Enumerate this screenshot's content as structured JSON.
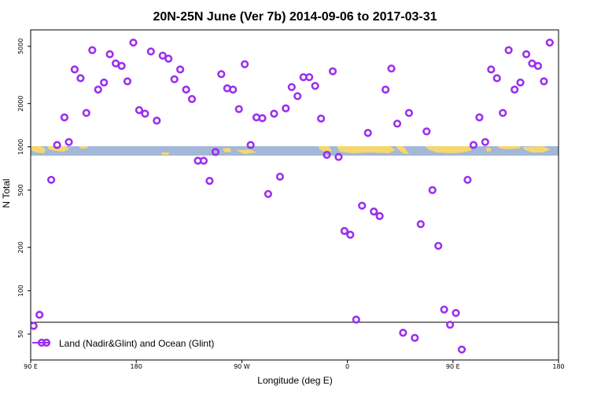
{
  "chart_data": {
    "type": "scatter",
    "title": "20N-25N June (Ver 7b)   2014-09-06 to 2017-03-31",
    "xlabel": "Longitude (deg E)",
    "ylabel": "N Total",
    "yscale": "log",
    "ylim": [
      33,
      6500
    ],
    "xlim": [
      0,
      360
    ],
    "x_ticks": [
      {
        "value": 0,
        "label": "90 E"
      },
      {
        "value": 72,
        "label": "180"
      },
      {
        "value": 144,
        "label": "90 W"
      },
      {
        "value": 216,
        "label": "0"
      },
      {
        "value": 288,
        "label": "90 E"
      },
      {
        "value": 360,
        "label": "180"
      }
    ],
    "y_ticks": [
      {
        "value": 50,
        "label": "50"
      },
      {
        "value": 100,
        "label": "100"
      },
      {
        "value": 200,
        "label": "200"
      },
      {
        "value": 500,
        "label": "500"
      },
      {
        "value": 1000,
        "label": "1000"
      },
      {
        "value": 2000,
        "label": "2000"
      },
      {
        "value": 5000,
        "label": "5000"
      }
    ],
    "legend": {
      "label": "Land (Nadir&Glint) and Ocean (Glint)",
      "position": "bottom-left"
    },
    "colors": {
      "points": "#9b30ef",
      "land": "#f5d76e",
      "ocean": "#a3b8d8"
    },
    "series": [
      {
        "name": "Land (Nadir&Glint) and Ocean (Glint)",
        "points": [
          [
            2,
            57
          ],
          [
            6,
            68
          ],
          [
            14,
            590
          ],
          [
            18,
            1030
          ],
          [
            23,
            1600
          ],
          [
            26,
            1080
          ],
          [
            30,
            3450
          ],
          [
            34,
            3000
          ],
          [
            38,
            1720
          ],
          [
            42,
            4700
          ],
          [
            46,
            2500
          ],
          [
            50,
            2800
          ],
          [
            54,
            4400
          ],
          [
            58,
            3800
          ],
          [
            62,
            3650
          ],
          [
            66,
            2850
          ],
          [
            70,
            5300
          ],
          [
            74,
            1800
          ],
          [
            78,
            1700
          ],
          [
            82,
            4600
          ],
          [
            86,
            1520
          ],
          [
            90,
            4300
          ],
          [
            94,
            4100
          ],
          [
            98,
            2950
          ],
          [
            102,
            3450
          ],
          [
            106,
            2500
          ],
          [
            110,
            2150
          ],
          [
            114,
            800
          ],
          [
            118,
            800
          ],
          [
            122,
            580
          ],
          [
            126,
            920
          ],
          [
            130,
            3200
          ],
          [
            134,
            2550
          ],
          [
            138,
            2500
          ],
          [
            142,
            1830
          ],
          [
            146,
            3750
          ],
          [
            150,
            1030
          ],
          [
            154,
            1600
          ],
          [
            158,
            1580
          ],
          [
            162,
            470
          ],
          [
            166,
            1700
          ],
          [
            170,
            620
          ],
          [
            174,
            1850
          ],
          [
            178,
            2600
          ],
          [
            182,
            2250
          ],
          [
            186,
            3050
          ],
          [
            190,
            3050
          ],
          [
            194,
            2650
          ],
          [
            198,
            1570
          ],
          [
            202,
            880
          ],
          [
            206,
            3350
          ],
          [
            210,
            850
          ],
          [
            214,
            260
          ],
          [
            218,
            245
          ],
          [
            222,
            63
          ],
          [
            226,
            390
          ],
          [
            230,
            1250
          ],
          [
            234,
            355
          ],
          [
            238,
            330
          ],
          [
            242,
            2500
          ],
          [
            246,
            3500
          ],
          [
            250,
            1450
          ],
          [
            254,
            51
          ],
          [
            258,
            1720
          ],
          [
            262,
            47
          ],
          [
            266,
            290
          ],
          [
            270,
            1280
          ],
          [
            274,
            500
          ],
          [
            278,
            205
          ],
          [
            282,
            74
          ],
          [
            286,
            58
          ],
          [
            290,
            70
          ],
          [
            294,
            39
          ],
          [
            298,
            590
          ],
          [
            302,
            1030
          ],
          [
            306,
            1600
          ],
          [
            310,
            1080
          ],
          [
            314,
            3450
          ],
          [
            318,
            3000
          ],
          [
            322,
            1720
          ],
          [
            326,
            4700
          ],
          [
            330,
            2500
          ],
          [
            334,
            2800
          ],
          [
            338,
            4400
          ],
          [
            342,
            3800
          ],
          [
            346,
            3650
          ],
          [
            350,
            2850
          ],
          [
            354,
            5300
          ]
        ]
      }
    ]
  }
}
